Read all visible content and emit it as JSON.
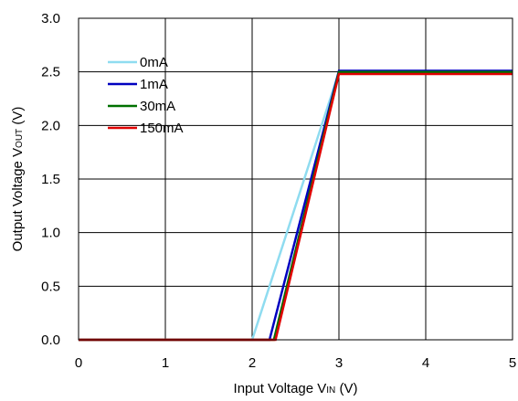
{
  "chart_data": {
    "type": "line",
    "title": "",
    "xlabel": {
      "prefix": "Input Voltage V",
      "subscript": "IN",
      "suffix": " (V)"
    },
    "ylabel": {
      "prefix": "Output Voltage V",
      "subscript": "OUT",
      "suffix": " (V)"
    },
    "xlim": [
      0,
      5
    ],
    "ylim": [
      0,
      3
    ],
    "x_ticks": [
      "0",
      "1",
      "2",
      "3",
      "4",
      "5"
    ],
    "y_ticks": [
      "0.0",
      "0.5",
      "1.0",
      "1.5",
      "2.0",
      "2.5",
      "3.0"
    ],
    "grid": true,
    "legend_position": "top-left",
    "series": [
      {
        "name": "0mA",
        "color": "#8fdcf0",
        "x": [
          0,
          2.0,
          3.0,
          5.0
        ],
        "y": [
          0,
          0,
          2.5,
          2.5
        ]
      },
      {
        "name": "1mA",
        "color": "#0000c0",
        "x": [
          0,
          2.2,
          3.0,
          5.0
        ],
        "y": [
          0,
          0,
          2.51,
          2.51
        ]
      },
      {
        "name": "30mA",
        "color": "#007000",
        "x": [
          0,
          2.25,
          3.0,
          5.0
        ],
        "y": [
          0,
          0,
          2.5,
          2.5
        ]
      },
      {
        "name": "150mA",
        "color": "#e00000",
        "x": [
          0,
          2.27,
          3.0,
          5.0
        ],
        "y": [
          0,
          0,
          2.48,
          2.48
        ]
      }
    ]
  }
}
